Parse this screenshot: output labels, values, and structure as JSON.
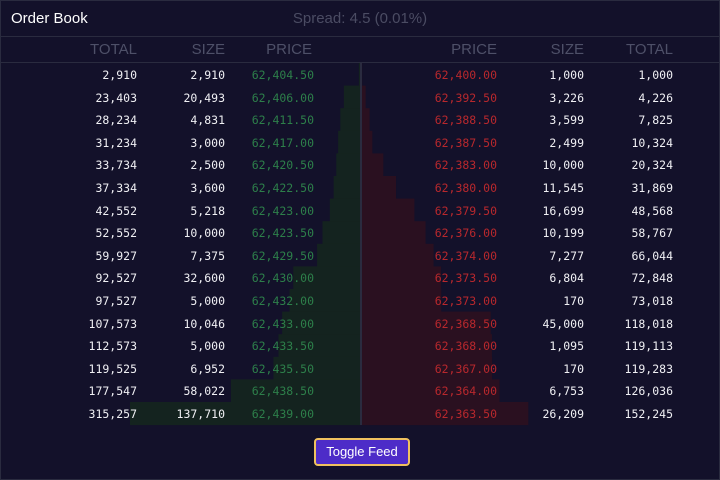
{
  "header": {
    "title": "Order Book",
    "spread": "Spread: 4.5 (0.01%)"
  },
  "columns": {
    "bids": [
      "TOTAL",
      "SIZE",
      "PRICE"
    ],
    "asks": [
      "PRICE",
      "SIZE",
      "TOTAL"
    ]
  },
  "bids": [
    {
      "total": "2,910",
      "size": "2,910",
      "price": "62,404.50"
    },
    {
      "total": "23,403",
      "size": "20,493",
      "price": "62,406.00"
    },
    {
      "total": "28,234",
      "size": "4,831",
      "price": "62,411.50"
    },
    {
      "total": "31,234",
      "size": "3,000",
      "price": "62,417.00"
    },
    {
      "total": "33,734",
      "size": "2,500",
      "price": "62,420.50"
    },
    {
      "total": "37,334",
      "size": "3,600",
      "price": "62,422.50"
    },
    {
      "total": "42,552",
      "size": "5,218",
      "price": "62,423.00"
    },
    {
      "total": "52,552",
      "size": "10,000",
      "price": "62,423.50"
    },
    {
      "total": "59,927",
      "size": "7,375",
      "price": "62,429.50"
    },
    {
      "total": "92,527",
      "size": "32,600",
      "price": "62,430.00"
    },
    {
      "total": "97,527",
      "size": "5,000",
      "price": "62,432.00"
    },
    {
      "total": "107,573",
      "size": "10,046",
      "price": "62,433.00"
    },
    {
      "total": "112,573",
      "size": "5,000",
      "price": "62,433.50"
    },
    {
      "total": "119,525",
      "size": "6,952",
      "price": "62,435.50"
    },
    {
      "total": "177,547",
      "size": "58,022",
      "price": "62,438.50"
    },
    {
      "total": "315,257",
      "size": "137,710",
      "price": "62,439.00"
    }
  ],
  "asks": [
    {
      "price": "62,400.00",
      "size": "1,000",
      "total": "1,000"
    },
    {
      "price": "62,392.50",
      "size": "3,226",
      "total": "4,226"
    },
    {
      "price": "62,388.50",
      "size": "3,599",
      "total": "7,825"
    },
    {
      "price": "62,387.50",
      "size": "2,499",
      "total": "10,324"
    },
    {
      "price": "62,383.00",
      "size": "10,000",
      "total": "20,324"
    },
    {
      "price": "62,380.00",
      "size": "11,545",
      "total": "31,869"
    },
    {
      "price": "62,379.50",
      "size": "16,699",
      "total": "48,568"
    },
    {
      "price": "62,376.00",
      "size": "10,199",
      "total": "58,767"
    },
    {
      "price": "62,374.00",
      "size": "7,277",
      "total": "66,044"
    },
    {
      "price": "62,373.50",
      "size": "6,804",
      "total": "72,848"
    },
    {
      "price": "62,373.00",
      "size": "170",
      "total": "73,018"
    },
    {
      "price": "62,368.50",
      "size": "45,000",
      "total": "118,018"
    },
    {
      "price": "62,368.00",
      "size": "1,095",
      "total": "119,113"
    },
    {
      "price": "62,367.00",
      "size": "170",
      "total": "119,283"
    },
    {
      "price": "62,364.00",
      "size": "6,753",
      "total": "126,036"
    },
    {
      "price": "62,363.50",
      "size": "26,209",
      "total": "152,245"
    }
  ],
  "button": {
    "label": "Toggle Feed"
  },
  "colors": {
    "bid": "#2d7f4a",
    "ask": "#b8282d",
    "bid_depth": "#14231f",
    "ask_depth": "#2a1020",
    "accent": "#4d2cc8",
    "button_border": "#f0c15e"
  }
}
